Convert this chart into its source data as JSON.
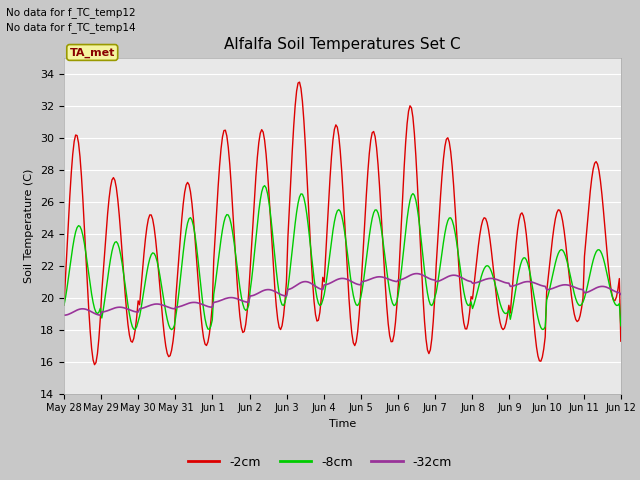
{
  "title": "Alfalfa Soil Temperatures Set C",
  "xlabel": "Time",
  "ylabel": "Soil Temperature (C)",
  "ylim": [
    14,
    35
  ],
  "yticks": [
    14,
    16,
    18,
    20,
    22,
    24,
    26,
    28,
    30,
    32,
    34
  ],
  "no_data_text": [
    "No data for f_TC_temp12",
    "No data for f_TC_temp14"
  ],
  "legend_label": "TA_met",
  "legend_bg": "#f5f5a0",
  "legend_edge": "#999900",
  "bg_color": "#e8e8e8",
  "fig_bg": "#c8c8c8",
  "grid_color": "#ffffff",
  "series": {
    "2cm": {
      "color": "#dd0000",
      "label": "-2cm"
    },
    "8cm": {
      "color": "#00cc00",
      "label": "-8cm"
    },
    "32cm": {
      "color": "#993399",
      "label": "-32cm"
    }
  },
  "x_tick_labels": [
    "May 28",
    "May 29",
    "May 30",
    "May 31",
    "Jun 1",
    "Jun 2",
    "Jun 3",
    "Jun 4",
    "Jun 5",
    "Jun 6",
    "Jun 7",
    "Jun 8",
    "Jun 9",
    "Jun 10",
    "Jun 11",
    "Jun 12"
  ],
  "x_tick_positions": [
    0,
    1,
    2,
    3,
    4,
    5,
    6,
    7,
    8,
    9,
    10,
    11,
    12,
    13,
    14,
    15
  ],
  "peaks_2cm": [
    30.2,
    27.5,
    25.2,
    27.2,
    30.5,
    30.5,
    33.5,
    30.8,
    30.4,
    32.0,
    30.0,
    25.0,
    25.3,
    25.5,
    28.5,
    17.5
  ],
  "troughs_2cm": [
    15.8,
    17.2,
    16.3,
    17.0,
    17.8,
    18.0,
    18.5,
    17.0,
    17.2,
    16.5,
    18.0,
    18.0,
    16.0,
    18.5,
    19.8,
    17.2
  ],
  "peaks_8cm": [
    24.5,
    23.5,
    22.8,
    25.0,
    25.2,
    27.0,
    26.5,
    25.5,
    25.5,
    26.5,
    25.0,
    22.0,
    22.5,
    23.0,
    23.0,
    20.5
  ],
  "troughs_8cm": [
    19.0,
    18.0,
    18.0,
    18.0,
    19.2,
    19.5,
    19.5,
    19.5,
    19.5,
    19.5,
    19.5,
    19.0,
    18.0,
    19.5,
    19.5,
    18.0
  ],
  "peaks_32cm": [
    19.3,
    19.4,
    19.6,
    19.7,
    20.0,
    20.5,
    21.0,
    21.2,
    21.3,
    21.5,
    21.4,
    21.2,
    21.0,
    20.8,
    20.7,
    20.5
  ],
  "troughs_32cm": [
    18.9,
    19.1,
    19.3,
    19.4,
    19.7,
    20.1,
    20.5,
    20.8,
    21.0,
    21.1,
    21.0,
    20.9,
    20.7,
    20.5,
    20.3,
    20.2
  ]
}
